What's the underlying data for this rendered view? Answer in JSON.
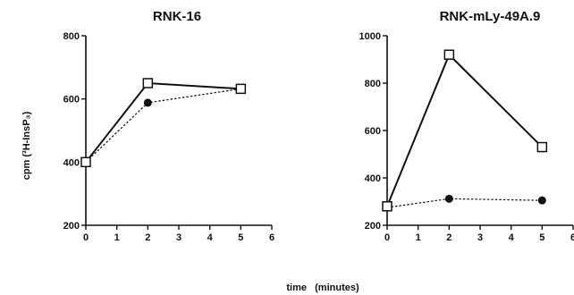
{
  "figure": {
    "ylabel": "cpm (³H-InsP₃)",
    "xlabel": "time   (minutes)"
  },
  "chart_data": [
    {
      "type": "line",
      "title": "RNK-16",
      "x_ticks": [
        0,
        1,
        2,
        3,
        4,
        5,
        6
      ],
      "y_ticks": [
        200,
        400,
        600,
        800
      ],
      "xlim": [
        0,
        6
      ],
      "ylim": [
        200,
        800
      ],
      "series": [
        {
          "marker": "open-square",
          "line": "solid",
          "x": [
            0,
            2,
            5
          ],
          "y": [
            400,
            650,
            632
          ]
        },
        {
          "marker": "filled-circle",
          "line": "dashed",
          "x": [
            0,
            2,
            5
          ],
          "y": [
            400,
            588,
            632
          ]
        }
      ]
    },
    {
      "type": "line",
      "title": "RNK-mLy-49A.9",
      "x_ticks": [
        0,
        1,
        2,
        3,
        4,
        5,
        6
      ],
      "y_ticks": [
        200,
        400,
        600,
        800,
        1000
      ],
      "xlim": [
        0,
        6
      ],
      "ylim": [
        200,
        1000
      ],
      "series": [
        {
          "marker": "open-square",
          "line": "solid",
          "x": [
            0,
            2,
            5
          ],
          "y": [
            280,
            920,
            530
          ]
        },
        {
          "marker": "filled-circle",
          "line": "dashed",
          "x": [
            0,
            2,
            5
          ],
          "y": [
            275,
            312,
            305
          ]
        }
      ]
    }
  ]
}
